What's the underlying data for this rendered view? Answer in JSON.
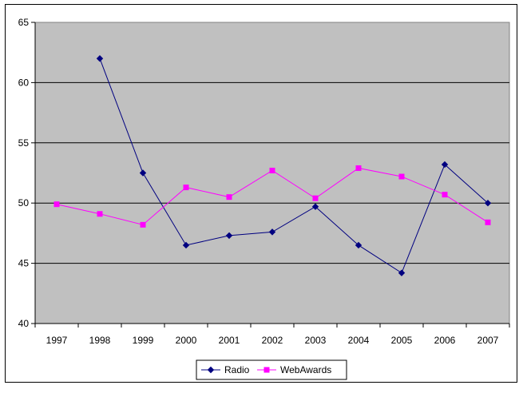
{
  "chart_data": {
    "type": "line",
    "title": "",
    "xlabel": "",
    "ylabel": "",
    "x": [
      "1997",
      "1998",
      "1999",
      "2000",
      "2001",
      "2002",
      "2003",
      "2004",
      "2005",
      "2006",
      "2007"
    ],
    "ylim": [
      40,
      65
    ],
    "yticks": [
      "40",
      "45",
      "50",
      "55",
      "60",
      "65"
    ],
    "grid": "horizontal",
    "plot_background": "#C0C0C0",
    "legend": "bottom",
    "series": [
      {
        "name": "Radio",
        "color": "#000080",
        "marker": "diamond",
        "values": [
          null,
          62.0,
          52.5,
          46.5,
          47.3,
          47.6,
          49.7,
          46.5,
          44.2,
          53.2,
          50.0
        ]
      },
      {
        "name": "WebAwards",
        "color": "#FF00FF",
        "marker": "square",
        "values": [
          49.9,
          49.1,
          48.2,
          51.3,
          50.5,
          52.7,
          50.4,
          52.9,
          52.2,
          50.7,
          48.4
        ]
      }
    ]
  }
}
